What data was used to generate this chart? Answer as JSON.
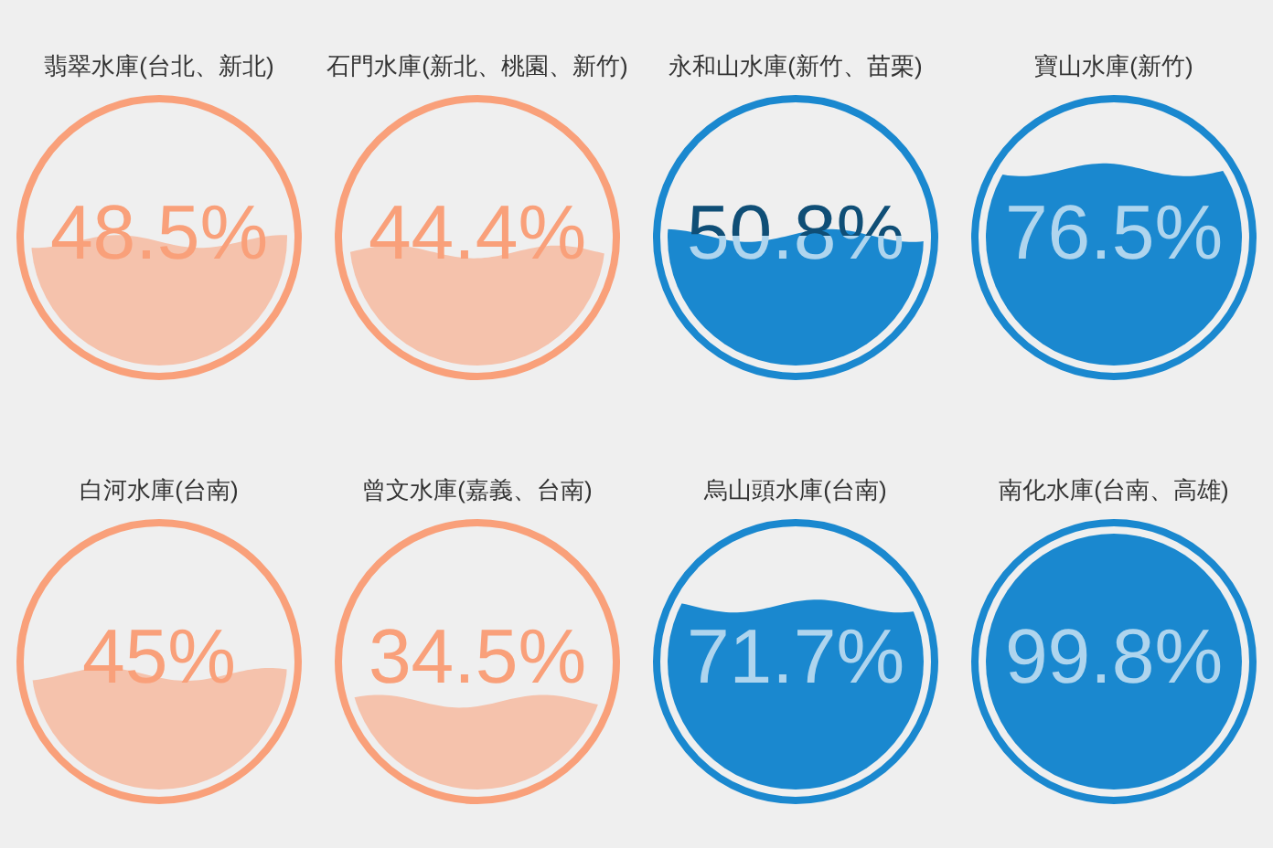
{
  "chart_data": {
    "type": "other",
    "categories": [
      "翡翠水庫(台北、新北)",
      "石門水庫(新北、桃園、新竹)",
      "永和山水庫(新竹、苗栗)",
      "寶山水庫(新竹)",
      "白河水庫(台南)",
      "曾文水庫(嘉義、台南)",
      "烏山頭水庫(台南)",
      "南化水庫(台南、高雄)"
    ],
    "values": [
      48.5,
      44.4,
      50.8,
      76.5,
      45,
      34.5,
      71.7,
      99.8
    ],
    "value_labels": [
      "48.5%",
      "44.4%",
      "50.8%",
      "76.5%",
      "45%",
      "34.5%",
      "71.7%",
      "99.8%"
    ],
    "colors": [
      "#f9a07a",
      "#f9a07a",
      "#1a88cf",
      "#1a88cf",
      "#f9a07a",
      "#f9a07a",
      "#1a88cf",
      "#1a88cf"
    ]
  }
}
